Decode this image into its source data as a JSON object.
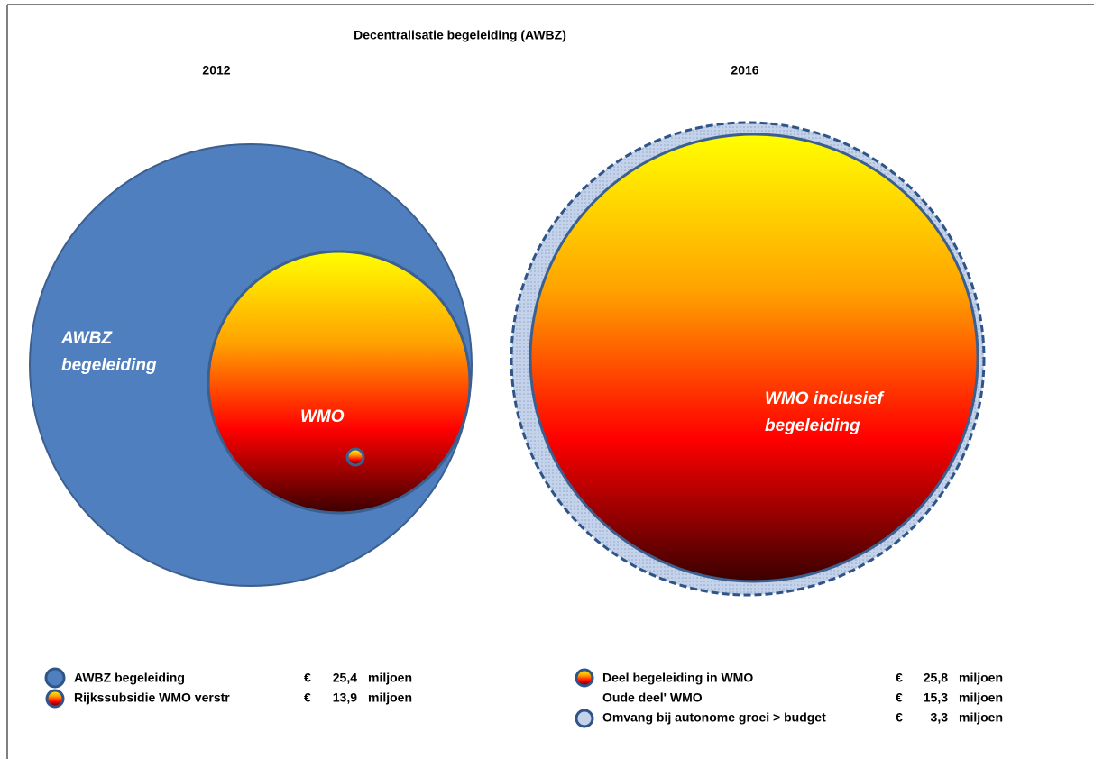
{
  "title": "Decentralisatie begeleiding (AWBZ)",
  "panels": [
    {
      "year": "2012",
      "labels": [
        "AWBZ",
        "begeleiding",
        "WMO"
      ]
    },
    {
      "year": "2016",
      "labels": [
        "WMO inclusief",
        "begeleiding"
      ]
    }
  ],
  "legend_left": [
    {
      "label": "AWBZ begeleiding",
      "currency": "€",
      "amount": "25,4",
      "unit": "miljoen"
    },
    {
      "label": "Rijkssubsidie WMO verstr",
      "currency": "€",
      "amount": "13,9",
      "unit": "miljoen"
    }
  ],
  "legend_right": [
    {
      "label": "Deel begeleiding in WMO",
      "currency": "€",
      "amount": "25,8",
      "unit": "miljoen"
    },
    {
      "label": "Oude deel' WMO",
      "currency": "€",
      "amount": "15,3",
      "unit": "miljoen"
    },
    {
      "label": "Omvang bij autonome groei > budget",
      "currency": "€",
      "amount": "3,3",
      "unit": "miljoen"
    }
  ]
}
